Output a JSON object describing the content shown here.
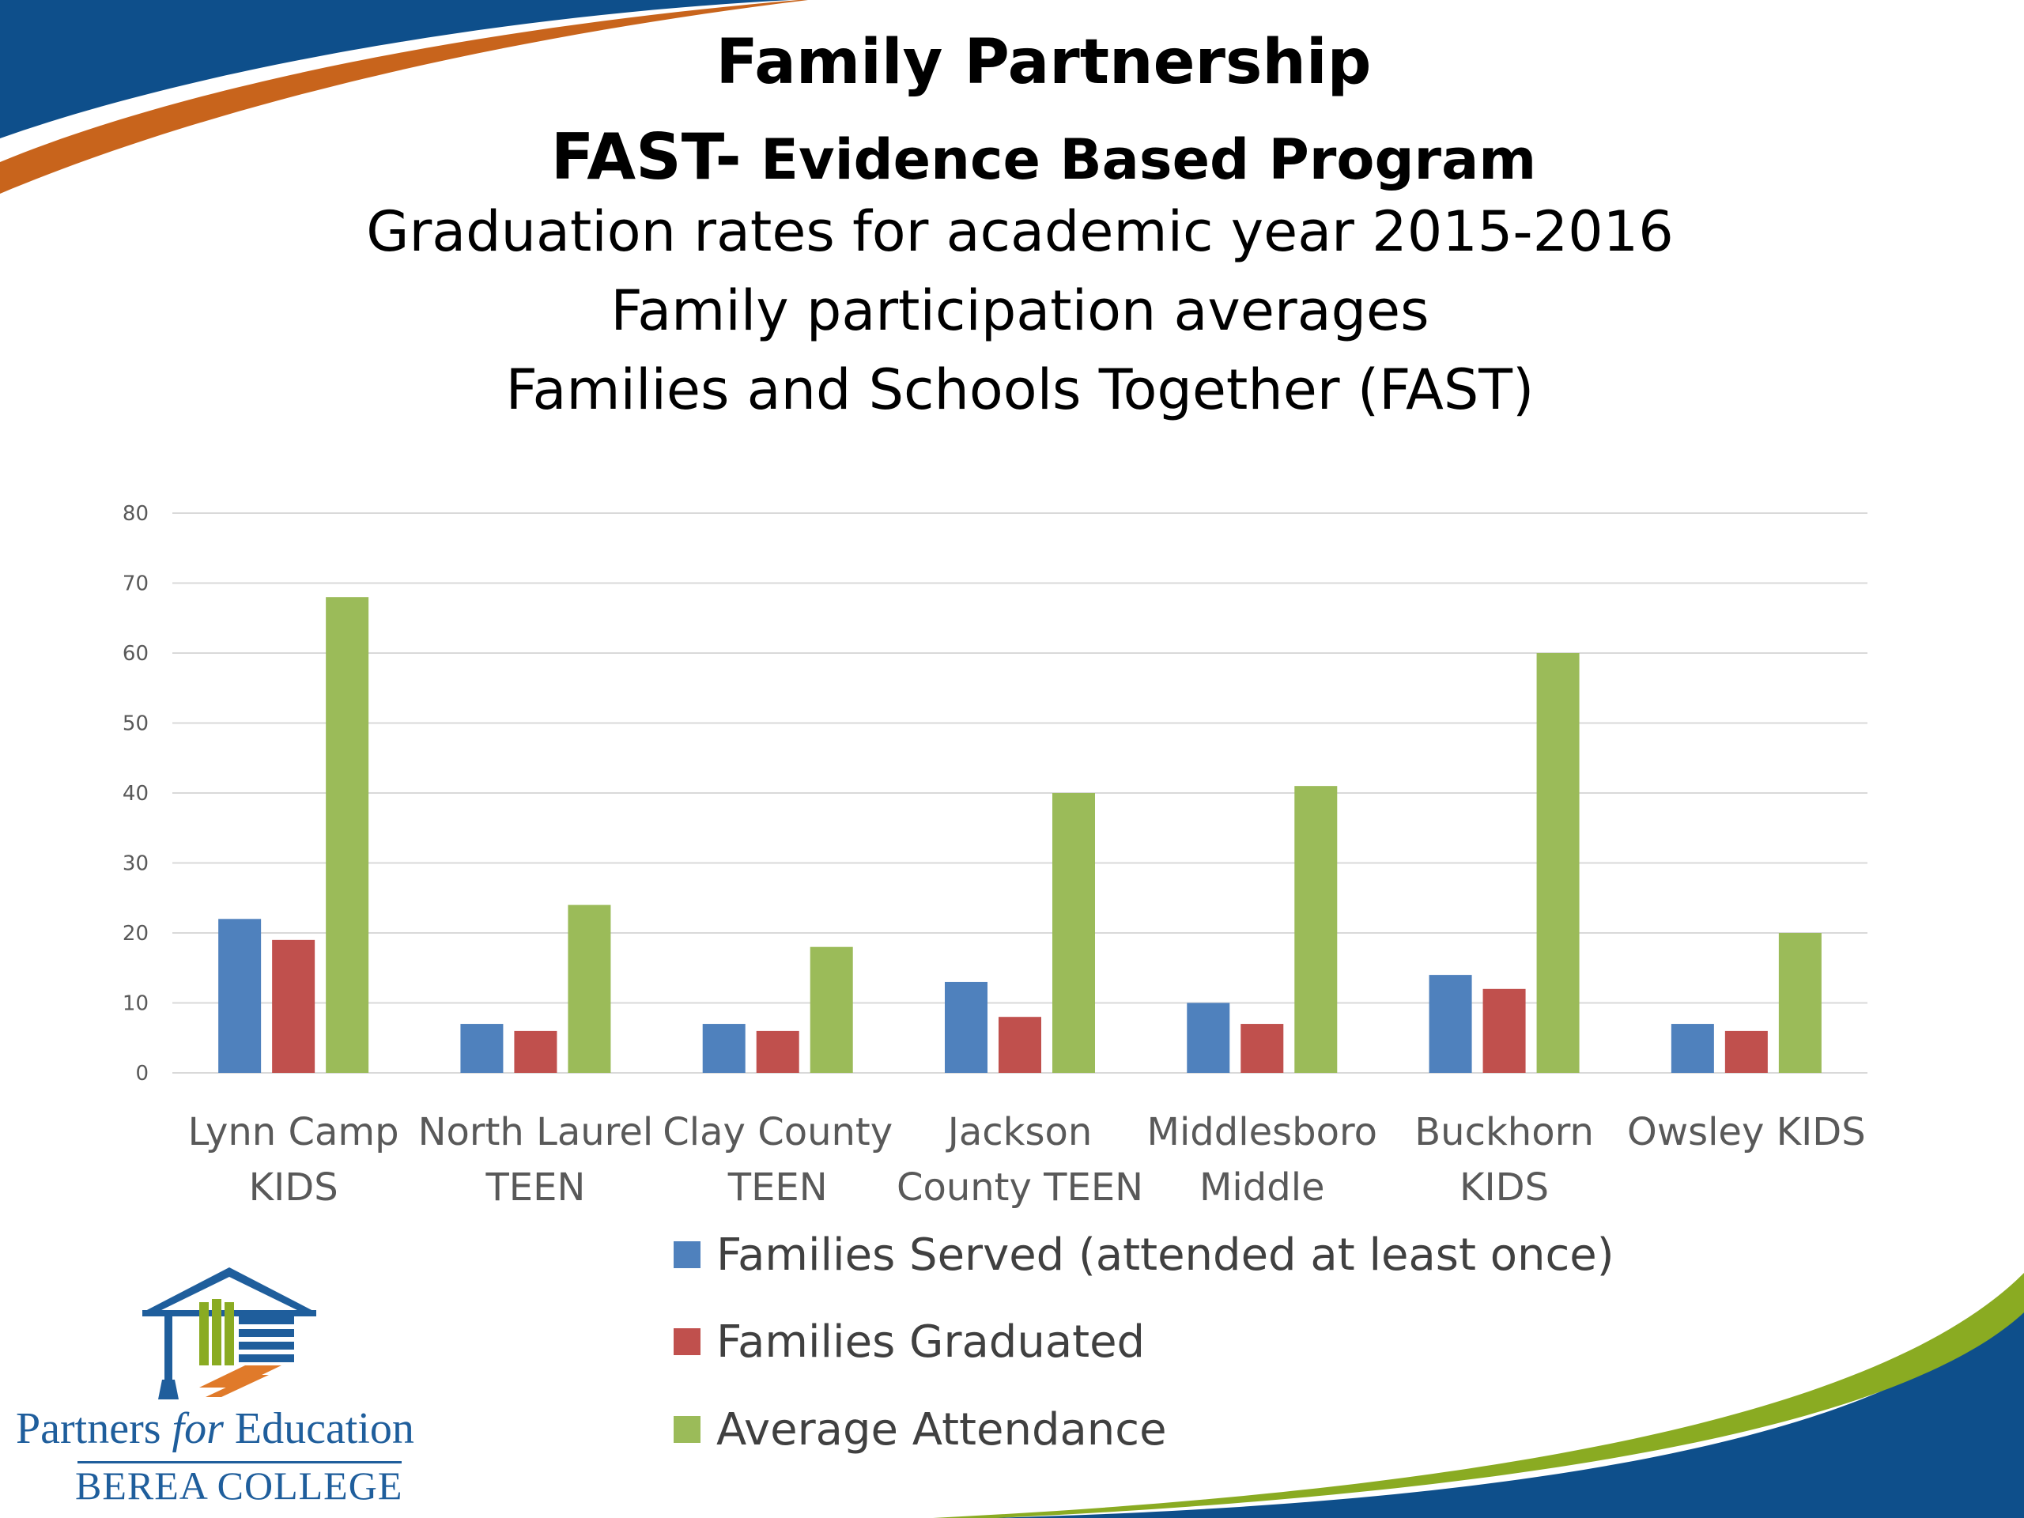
{
  "header": {
    "title": "Family Partnership",
    "subtitle_strong": "FAST-",
    "subtitle_rest": " Evidence Based Program",
    "line1": "Graduation rates for academic year 2015-2016",
    "line2": "Family participation averages",
    "line3": "Families and Schools Together (FAST)"
  },
  "logo": {
    "name": "Partners for Education",
    "name_pre": "Partners ",
    "name_em": "for",
    "name_post": " Education",
    "org": "BEREA COLLEGE",
    "icon": "graduation-cap-building-icon"
  },
  "colors": {
    "blue": "#4f81bd",
    "red": "#c0504d",
    "green": "#9bbb59",
    "banner_blue": "#0e4f8b",
    "banner_orange": "#c8641c",
    "banner_green": "#8aab22"
  },
  "chart_data": {
    "type": "bar",
    "categories": [
      [
        "Lynn Camp",
        "KIDS"
      ],
      [
        "North Laurel",
        "TEEN"
      ],
      [
        "Clay County",
        "TEEN"
      ],
      [
        "Jackson",
        "County TEEN"
      ],
      [
        "Middlesboro",
        "Middle"
      ],
      [
        "Buckhorn",
        "KIDS"
      ],
      [
        "Owsley KIDS"
      ]
    ],
    "series": [
      {
        "name": "Families Served (attended at least once)",
        "color": "#4f81bd",
        "values": [
          22,
          7,
          7,
          13,
          10,
          14,
          7
        ]
      },
      {
        "name": "Families Graduated",
        "color": "#c0504d",
        "values": [
          19,
          6,
          6,
          8,
          7,
          12,
          6
        ]
      },
      {
        "name": "Average Attendance",
        "color": "#9bbb59",
        "values": [
          68,
          24,
          18,
          40,
          41,
          60,
          20
        ]
      }
    ],
    "ylim": [
      0,
      80
    ],
    "yticks": [
      0,
      10,
      20,
      30,
      40,
      50,
      60,
      70,
      80
    ],
    "grid": true,
    "legend": "bottom"
  }
}
